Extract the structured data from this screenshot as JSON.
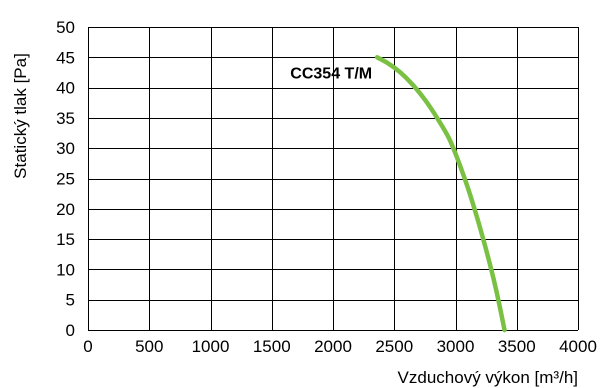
{
  "chart_data": {
    "type": "line",
    "title": "",
    "xlabel": "Vzduchový výkon [m³/h]",
    "ylabel": "Statický tlak [Pa]",
    "xlim": [
      0,
      4000
    ],
    "ylim": [
      0,
      50
    ],
    "xticks": [
      0,
      500,
      1000,
      1500,
      2000,
      2500,
      3000,
      3500,
      4000
    ],
    "yticks": [
      0,
      5,
      10,
      15,
      20,
      25,
      30,
      35,
      40,
      45,
      50
    ],
    "grid": true,
    "series": [
      {
        "name": "CC354 T/M",
        "color": "#7ac143",
        "x": [
          2360,
          2450,
          2550,
          2650,
          2750,
          2850,
          2950,
          3030,
          3100,
          3170,
          3240,
          3310,
          3360,
          3400
        ],
        "y": [
          45,
          44,
          42.5,
          40.5,
          38,
          35,
          31.5,
          27.5,
          23.5,
          19,
          14,
          8.5,
          4,
          0
        ]
      }
    ]
  }
}
